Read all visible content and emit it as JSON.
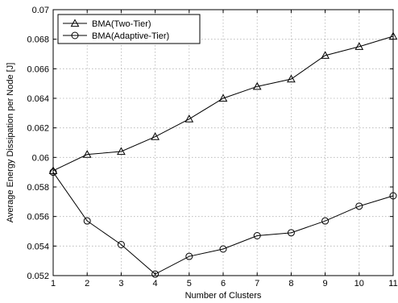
{
  "chart_data": {
    "type": "line",
    "title": "",
    "xlabel": "Number of Clusters",
    "ylabel": "Average Energy Dissipation per Node [J]",
    "x": [
      1,
      2,
      3,
      4,
      5,
      6,
      7,
      8,
      9,
      10,
      11
    ],
    "xlim": [
      1,
      11
    ],
    "ylim": [
      0.052,
      0.07
    ],
    "xticks": [
      "1",
      "2",
      "3",
      "4",
      "5",
      "6",
      "7",
      "8",
      "9",
      "10",
      "11"
    ],
    "yticks": [
      "0.052",
      "0.054",
      "0.056",
      "0.058",
      "0.06",
      "0.062",
      "0.064",
      "0.066",
      "0.068",
      "0.07"
    ],
    "grid": true,
    "legend_position": "top-left",
    "series": [
      {
        "name": "BMA(Two-Tier)",
        "marker": "triangle",
        "values": [
          0.0591,
          0.0602,
          0.0604,
          0.0614,
          0.0626,
          0.064,
          0.0648,
          0.0653,
          0.0669,
          0.0675,
          0.0682
        ]
      },
      {
        "name": "BMA(Adaptive-Tier)",
        "marker": "circle",
        "values": [
          0.059,
          0.0557,
          0.0541,
          0.0521,
          0.0533,
          0.0538,
          0.0547,
          0.0549,
          0.0557,
          0.0567,
          0.0574
        ]
      }
    ]
  }
}
